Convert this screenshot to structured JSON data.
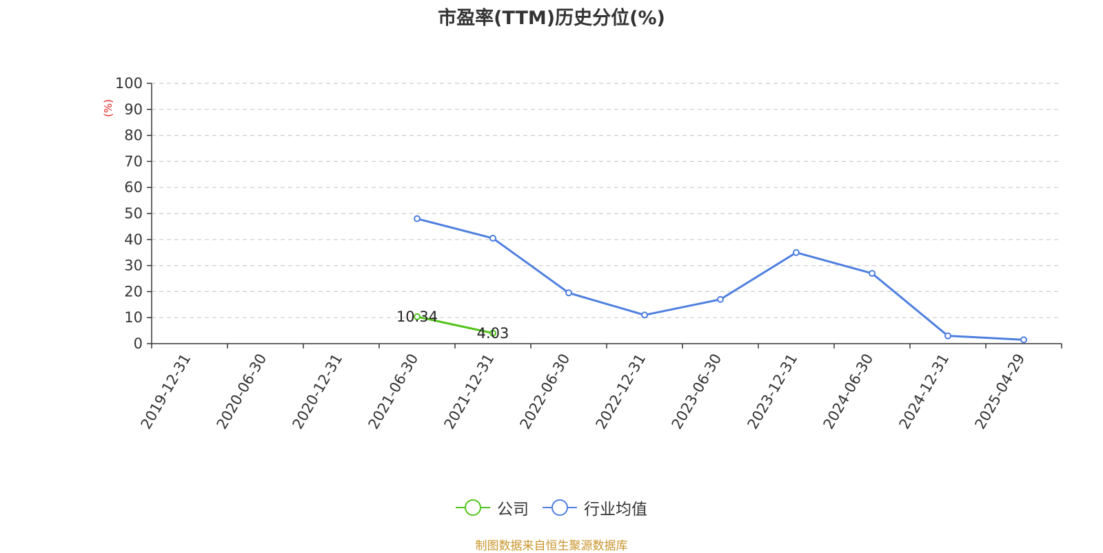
{
  "chart_data": {
    "type": "line",
    "title": "市盈率(TTM)历史分位(%)",
    "ylabel": "(%)",
    "ylim": [
      0,
      100
    ],
    "yticks": [
      0,
      10,
      20,
      30,
      40,
      50,
      60,
      70,
      80,
      90,
      100
    ],
    "categories": [
      "2019-12-31",
      "2020-06-30",
      "2020-12-31",
      "2021-06-30",
      "2021-12-31",
      "2022-06-30",
      "2022-12-31",
      "2023-06-30",
      "2023-12-31",
      "2024-06-30",
      "2024-12-31",
      "2025-04-29"
    ],
    "grid": true,
    "legend_position": "bottom",
    "series": [
      {
        "name": "公司",
        "color": "#52c41a",
        "values": [
          null,
          null,
          null,
          10.34,
          4.03,
          null,
          null,
          null,
          null,
          null,
          null,
          null
        ],
        "labels": [
          null,
          null,
          null,
          "10.34",
          "4.03",
          null,
          null,
          null,
          null,
          null,
          null,
          null
        ]
      },
      {
        "name": "行业均值",
        "color": "#4e7fdf",
        "values": [
          null,
          null,
          null,
          48,
          40.5,
          19.5,
          11,
          17,
          35,
          27,
          3,
          1.5
        ],
        "labels": [
          null,
          null,
          null,
          null,
          null,
          null,
          null,
          null,
          null,
          null,
          null,
          null
        ]
      }
    ]
  },
  "source_text": "制图数据来自恒生聚源数据库",
  "colors": {
    "source": "#c8962e",
    "ylabel": "#e02020",
    "axis": "#333333",
    "grid": "#cccccc"
  }
}
